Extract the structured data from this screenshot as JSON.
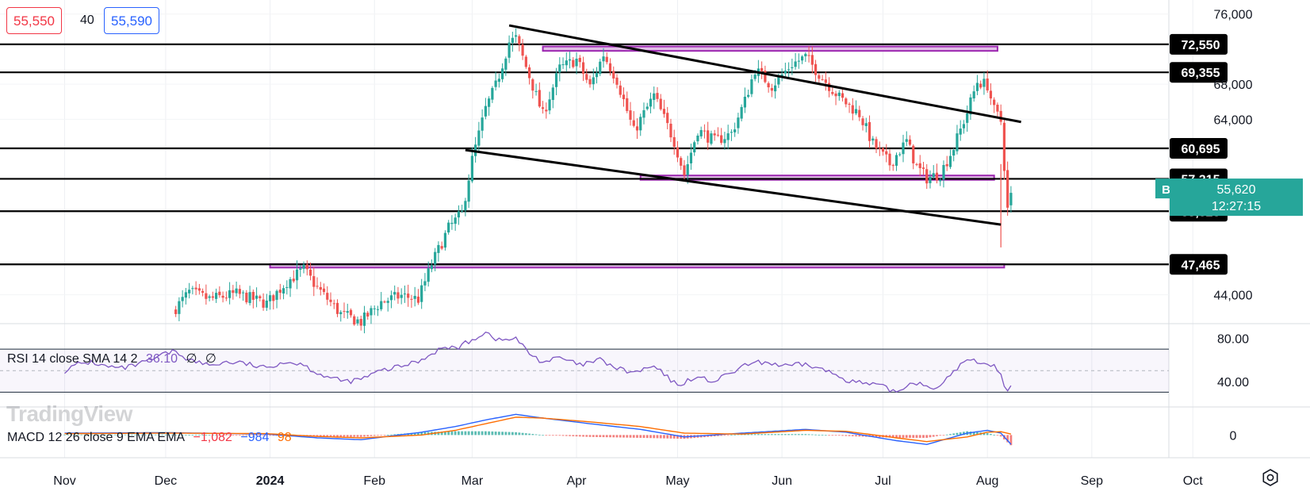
{
  "quote": {
    "bid": "55,550",
    "spread": "40",
    "ask": "55,590"
  },
  "symbol": {
    "ticker": "BTCQ2024",
    "price": "55,620",
    "countdown": "12:27:15"
  },
  "rsi": {
    "label": "RSI 14 close SMA 14 2",
    "value": "36.10",
    "ma": "∅",
    "ma2": "∅"
  },
  "macd": {
    "label": "MACD 12 26 close 9 EMA EMA",
    "hist": "−1,082",
    "macd": "−984",
    "signal": "98"
  },
  "watermark": "TradingView",
  "colors": {
    "up": "#26a69a",
    "down": "#ef5350",
    "rsi": "#7e57c2",
    "macd": "#2962ff",
    "signal": "#ff6d00",
    "zone": "#9c27b0",
    "symbol_badge": "#26a69a"
  },
  "icons": {
    "settings": "gear-icon"
  },
  "chart_data": {
    "type": "candlestick",
    "price_axis": {
      "ylim": [
        40800,
        77600
      ],
      "ticks": [
        "76,000",
        "68,000",
        "64,000",
        "44,000"
      ]
    },
    "x_axis": {
      "labels": [
        {
          "label": "Nov",
          "date": "2023-11-01"
        },
        {
          "label": "Dec",
          "date": "2023-12-01"
        },
        {
          "label": "2024",
          "date": "2024-01-01"
        },
        {
          "label": "Feb",
          "date": "2024-02-01"
        },
        {
          "label": "Mar",
          "date": "2024-03-01"
        },
        {
          "label": "Apr",
          "date": "2024-04-01"
        },
        {
          "label": "May",
          "date": "2024-05-01"
        },
        {
          "label": "Jun",
          "date": "2024-06-01"
        },
        {
          "label": "Jul",
          "date": "2024-07-01"
        },
        {
          "label": "Aug",
          "date": "2024-08-01"
        },
        {
          "label": "Sep",
          "date": "2024-09-01"
        },
        {
          "label": "Oct",
          "date": "2024-10-01"
        }
      ]
    },
    "levels": [
      {
        "price": 72550,
        "label": "72,550"
      },
      {
        "price": 69355,
        "label": "69,355"
      },
      {
        "price": 60695,
        "label": "60,695"
      },
      {
        "price": 57215,
        "label": "57,215"
      },
      {
        "price": 53525,
        "label": "53,525"
      },
      {
        "price": 47465,
        "label": "47,465"
      }
    ],
    "zones": [
      {
        "from": "2024-03-22",
        "to": "2024-08-04",
        "low": 71800,
        "high": 72300
      },
      {
        "from": "2024-04-20",
        "to": "2024-08-03",
        "low": 57100,
        "high": 57600
      },
      {
        "from": "2024-01-01",
        "to": "2024-08-06",
        "low": 47100,
        "high": 47500
      }
    ],
    "trendlines": [
      {
        "from": [
          "2024-03-12",
          74700
        ],
        "to": [
          "2024-08-11",
          63700
        ]
      },
      {
        "from": [
          "2024-02-28",
          60500
        ],
        "to": [
          "2024-08-05",
          52000
        ]
      }
    ],
    "anchors": [
      [
        "2023-12-04",
        42500
      ],
      [
        "2023-12-08",
        44300
      ],
      [
        "2023-12-14",
        43500
      ],
      [
        "2023-12-22",
        44100
      ],
      [
        "2023-12-31",
        43000
      ],
      [
        "2024-01-06",
        45500
      ],
      [
        "2024-01-11",
        46900
      ],
      [
        "2024-01-15",
        44800
      ],
      [
        "2024-01-22",
        41800
      ],
      [
        "2024-01-28",
        40900
      ],
      [
        "2024-02-03",
        43200
      ],
      [
        "2024-02-09",
        43900
      ],
      [
        "2024-02-14",
        43500
      ],
      [
        "2024-02-18",
        47500
      ],
      [
        "2024-02-23",
        51600
      ],
      [
        "2024-02-27",
        53300
      ],
      [
        "2024-03-01",
        59400
      ],
      [
        "2024-03-05",
        65200
      ],
      [
        "2024-03-08",
        67800
      ],
      [
        "2024-03-12",
        72800
      ],
      [
        "2024-03-14",
        73200
      ],
      [
        "2024-03-18",
        68900
      ],
      [
        "2024-03-22",
        64500
      ],
      [
        "2024-03-27",
        69800
      ],
      [
        "2024-04-01",
        70800
      ],
      [
        "2024-04-05",
        67700
      ],
      [
        "2024-04-09",
        71400
      ],
      [
        "2024-04-13",
        68500
      ],
      [
        "2024-04-18",
        62600
      ],
      [
        "2024-04-24",
        66700
      ],
      [
        "2024-04-30",
        61500
      ],
      [
        "2024-05-03",
        57700
      ],
      [
        "2024-05-07",
        62800
      ],
      [
        "2024-05-12",
        61500
      ],
      [
        "2024-05-17",
        62400
      ],
      [
        "2024-05-21",
        66100
      ],
      [
        "2024-05-24",
        69700
      ],
      [
        "2024-05-29",
        67800
      ],
      [
        "2024-06-04",
        70300
      ],
      [
        "2024-06-08",
        71100
      ],
      [
        "2024-06-12",
        69200
      ],
      [
        "2024-06-18",
        66500
      ],
      [
        "2024-06-24",
        64600
      ],
      [
        "2024-06-28",
        61200
      ],
      [
        "2024-07-03",
        58900
      ],
      [
        "2024-07-08",
        61500
      ],
      [
        "2024-07-11",
        58600
      ],
      [
        "2024-07-14",
        57300
      ],
      [
        "2024-07-18",
        57800
      ],
      [
        "2024-07-22",
        60800
      ],
      [
        "2024-07-26",
        64800
      ],
      [
        "2024-07-29",
        68300
      ],
      [
        "2024-08-01",
        67900
      ],
      [
        "2024-08-03",
        65000
      ],
      [
        "2024-08-05",
        63800
      ],
      [
        "2024-08-06",
        58700
      ],
      [
        "2024-08-07",
        53700
      ],
      [
        "2024-08-08",
        55620
      ]
    ],
    "rsi_axis": {
      "ylim": [
        17,
        93
      ],
      "ticks": [
        "80.00",
        "40.00"
      ],
      "bands": [
        70,
        50,
        30
      ]
    },
    "rsi_series": [
      [
        "2023-11-01",
        50
      ],
      [
        "2023-11-05",
        56
      ],
      [
        "2023-11-09",
        58
      ],
      [
        "2023-11-13",
        54
      ],
      [
        "2023-11-18",
        52
      ],
      [
        "2023-11-22",
        55
      ],
      [
        "2023-11-27",
        60
      ],
      [
        "2023-12-01",
        66
      ],
      [
        "2023-12-04",
        68
      ],
      [
        "2023-12-08",
        60
      ],
      [
        "2023-12-14",
        55
      ],
      [
        "2023-12-19",
        58
      ],
      [
        "2023-12-24",
        57
      ],
      [
        "2023-12-31",
        52
      ],
      [
        "2024-01-04",
        58
      ],
      [
        "2024-01-10",
        57
      ],
      [
        "2024-01-15",
        48
      ],
      [
        "2024-01-20",
        42
      ],
      [
        "2024-01-24",
        40
      ],
      [
        "2024-01-28",
        42
      ],
      [
        "2024-02-03",
        50
      ],
      [
        "2024-02-09",
        54
      ],
      [
        "2024-02-15",
        60
      ],
      [
        "2024-02-20",
        70
      ],
      [
        "2024-02-26",
        72
      ],
      [
        "2024-02-29",
        77
      ],
      [
        "2024-03-05",
        86
      ],
      [
        "2024-03-09",
        78
      ],
      [
        "2024-03-14",
        80
      ],
      [
        "2024-03-18",
        66
      ],
      [
        "2024-03-22",
        58
      ],
      [
        "2024-03-27",
        62
      ],
      [
        "2024-04-02",
        55
      ],
      [
        "2024-04-08",
        60
      ],
      [
        "2024-04-13",
        52
      ],
      [
        "2024-04-18",
        48
      ],
      [
        "2024-04-24",
        54
      ],
      [
        "2024-05-01",
        36
      ],
      [
        "2024-05-06",
        44
      ],
      [
        "2024-05-12",
        40
      ],
      [
        "2024-05-17",
        48
      ],
      [
        "2024-05-22",
        56
      ],
      [
        "2024-05-27",
        58
      ],
      [
        "2024-06-02",
        54
      ],
      [
        "2024-06-08",
        56
      ],
      [
        "2024-06-14",
        50
      ],
      [
        "2024-06-20",
        42
      ],
      [
        "2024-06-25",
        38
      ],
      [
        "2024-06-30",
        36
      ],
      [
        "2024-07-05",
        30
      ],
      [
        "2024-07-10",
        40
      ],
      [
        "2024-07-14",
        36
      ],
      [
        "2024-07-18",
        34
      ],
      [
        "2024-07-22",
        50
      ],
      [
        "2024-07-26",
        60
      ],
      [
        "2024-07-30",
        58
      ],
      [
        "2024-08-03",
        55
      ],
      [
        "2024-08-05",
        45
      ],
      [
        "2024-08-07",
        30
      ],
      [
        "2024-08-08",
        36.1
      ]
    ],
    "macd_axis": {
      "ylim": [
        -1400,
        2900
      ],
      "ticks": [
        "0"
      ]
    },
    "macd_series": [
      [
        "2023-11-01",
        200
      ],
      [
        "2023-12-01",
        250
      ],
      [
        "2023-12-31",
        100
      ],
      [
        "2024-01-15",
        -300
      ],
      [
        "2024-01-28",
        -500
      ],
      [
        "2024-02-15",
        300
      ],
      [
        "2024-02-25",
        900
      ],
      [
        "2024-03-05",
        1600
      ],
      [
        "2024-03-14",
        2200
      ],
      [
        "2024-03-22",
        1800
      ],
      [
        "2024-04-05",
        1200
      ],
      [
        "2024-04-20",
        600
      ],
      [
        "2024-05-03",
        -200
      ],
      [
        "2024-05-20",
        200
      ],
      [
        "2024-06-08",
        600
      ],
      [
        "2024-06-20",
        300
      ],
      [
        "2024-07-05",
        -600
      ],
      [
        "2024-07-14",
        -1000
      ],
      [
        "2024-07-26",
        200
      ],
      [
        "2024-08-01",
        500
      ],
      [
        "2024-08-05",
        200
      ],
      [
        "2024-08-08",
        -984
      ]
    ],
    "signal_series": [
      [
        "2023-11-01",
        150
      ],
      [
        "2023-12-01",
        200
      ],
      [
        "2023-12-31",
        150
      ],
      [
        "2024-01-15",
        -150
      ],
      [
        "2024-01-28",
        -300
      ],
      [
        "2024-02-15",
        0
      ],
      [
        "2024-02-25",
        500
      ],
      [
        "2024-03-05",
        1200
      ],
      [
        "2024-03-14",
        1900
      ],
      [
        "2024-03-22",
        1800
      ],
      [
        "2024-04-05",
        1400
      ],
      [
        "2024-04-20",
        900
      ],
      [
        "2024-05-03",
        200
      ],
      [
        "2024-05-20",
        100
      ],
      [
        "2024-06-08",
        500
      ],
      [
        "2024-06-20",
        400
      ],
      [
        "2024-07-05",
        -300
      ],
      [
        "2024-07-14",
        -700
      ],
      [
        "2024-07-26",
        -200
      ],
      [
        "2024-08-01",
        300
      ],
      [
        "2024-08-05",
        350
      ],
      [
        "2024-08-08",
        98
      ]
    ]
  }
}
